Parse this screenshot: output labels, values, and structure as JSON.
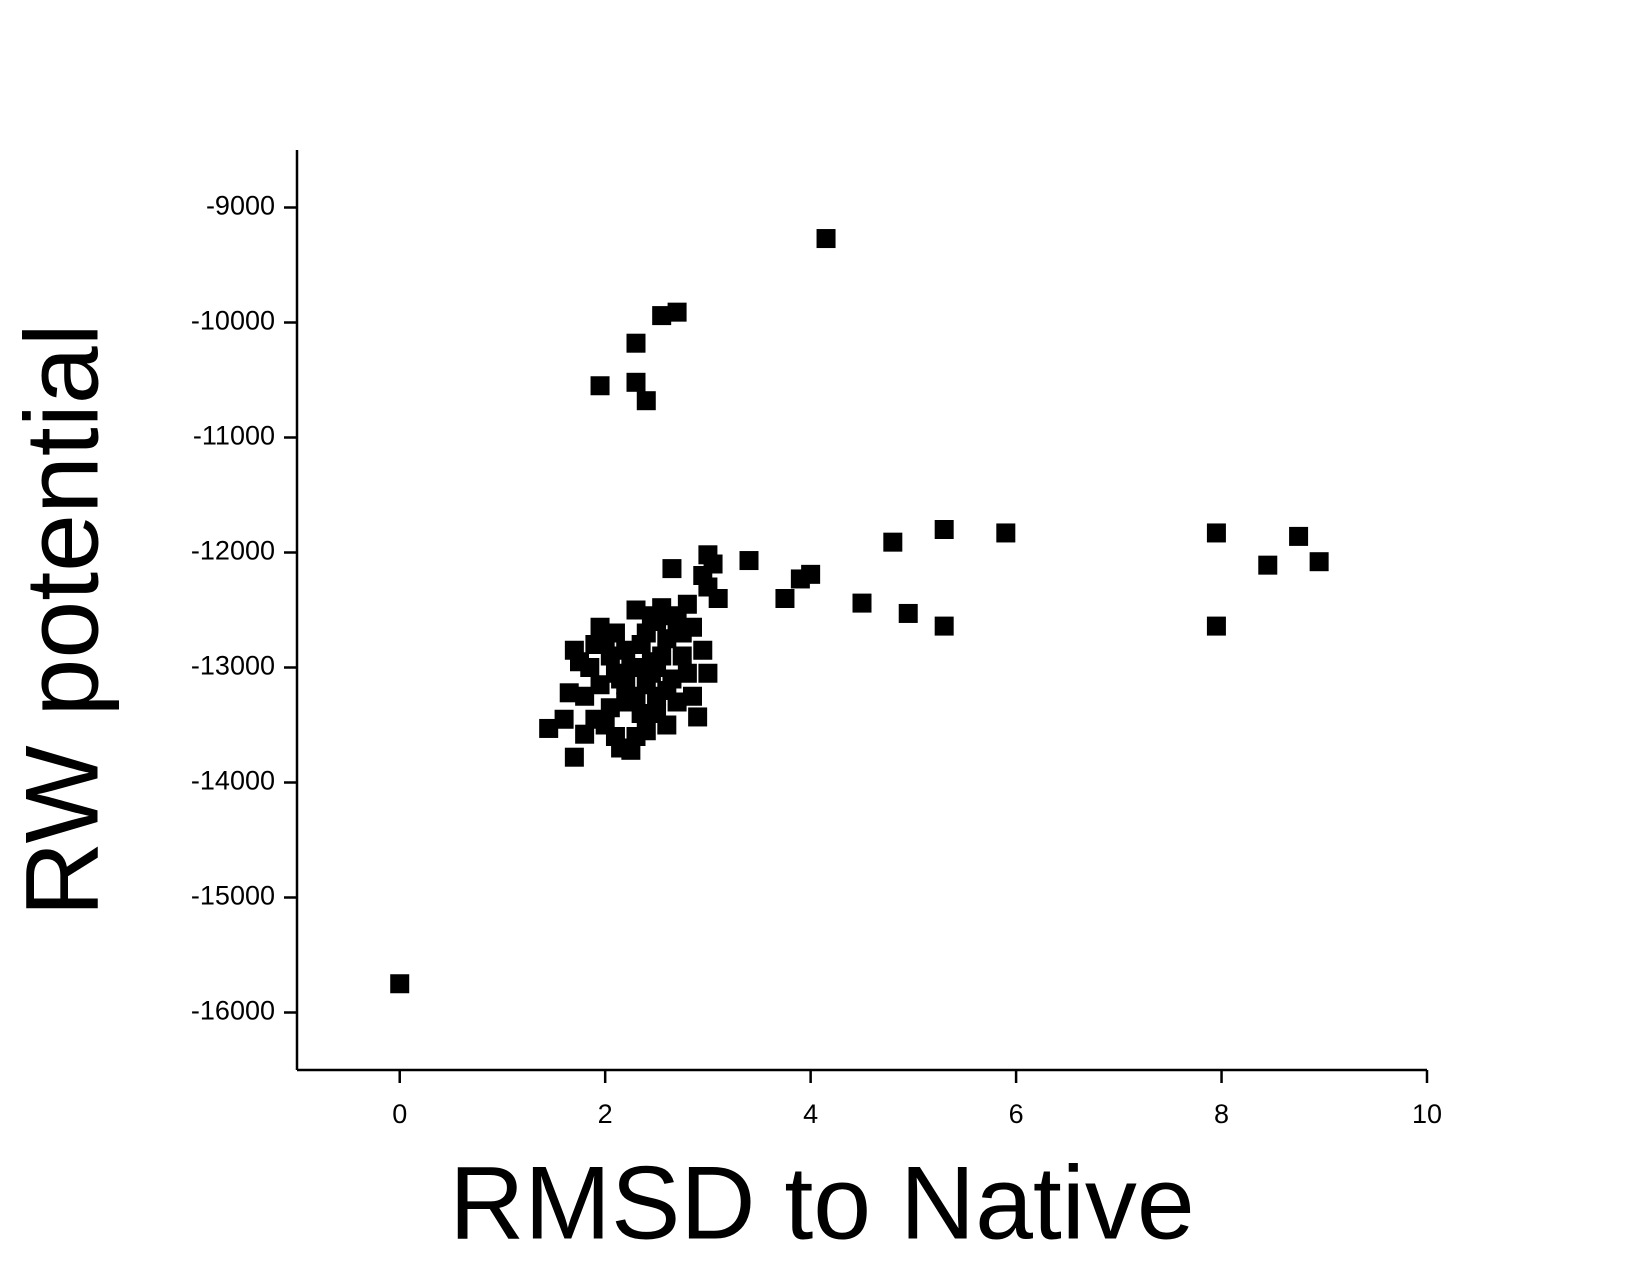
{
  "chart_data": {
    "type": "scatter",
    "x_label": "RMSD to Native",
    "y_label": "RW potential",
    "xlim": [
      -1,
      10
    ],
    "ylim": [
      -16500,
      -8500
    ],
    "xticks": [
      0,
      2,
      4,
      6,
      8,
      10
    ],
    "yticks": [
      -16000,
      -15000,
      -14000,
      -13000,
      -12000,
      -11000,
      -10000,
      -9000
    ],
    "color": "#000000",
    "x": [
      0,
      4.15,
      2.55,
      2.7,
      2.3,
      1.95,
      2.3,
      2.4,
      5.3,
      5.9,
      4.8,
      7.95,
      8.75,
      8.45,
      8.95,
      7.95,
      5.3,
      4.95,
      4.5,
      3.75,
      3.9,
      4.0,
      3.4,
      3.0,
      3.05,
      2.95,
      3.0,
      3.1,
      2.65,
      1.45,
      1.7,
      1.65,
      1.7,
      1.75,
      1.8,
      1.8,
      1.9,
      1.95,
      2.0,
      2.05,
      2.1,
      2.1,
      2.15,
      2.2,
      2.25,
      2.3,
      2.35,
      2.4,
      2.4,
      2.45,
      2.5,
      2.5,
      2.55,
      2.6,
      2.6,
      2.65,
      2.7,
      2.75,
      2.8,
      2.85,
      2.9,
      2.95,
      3.0,
      1.85,
      1.95,
      2.05,
      2.15,
      2.2,
      2.25,
      2.3,
      2.35,
      2.4,
      2.45,
      2.5,
      2.55,
      2.6,
      2.7,
      2.75,
      2.8,
      2.0,
      1.9,
      2.3,
      2.65,
      2.85,
      1.6,
      2.1,
      2.35,
      2.2,
      2.5,
      2.45
    ],
    "values": [
      -15750,
      -9270,
      -9940,
      -9910,
      -10180,
      -10550,
      -10520,
      -10680,
      -11800,
      -11830,
      -11910,
      -11830,
      -11860,
      -12110,
      -12080,
      -12640,
      -12640,
      -12530,
      -12440,
      -12400,
      -12230,
      -12190,
      -12070,
      -12020,
      -12100,
      -12200,
      -12300,
      -12400,
      -12140,
      -13530,
      -13780,
      -13220,
      -12850,
      -12950,
      -13250,
      -13580,
      -13450,
      -12650,
      -12780,
      -12900,
      -13050,
      -13600,
      -13700,
      -13300,
      -13720,
      -12500,
      -12800,
      -13150,
      -13550,
      -12950,
      -13400,
      -12600,
      -12480,
      -12750,
      -13500,
      -13100,
      -12600,
      -12900,
      -12450,
      -13250,
      -13430,
      -12850,
      -13050,
      -13000,
      -13150,
      -13350,
      -13100,
      -12850,
      -13000,
      -13250,
      -13400,
      -12700,
      -13050,
      -13250,
      -12900,
      -13200,
      -13300,
      -12700,
      -13050,
      -13500,
      -12800,
      -13600,
      -12550,
      -12650,
      -13450,
      -12700,
      -13000,
      -13150,
      -13000,
      -12550
    ]
  }
}
